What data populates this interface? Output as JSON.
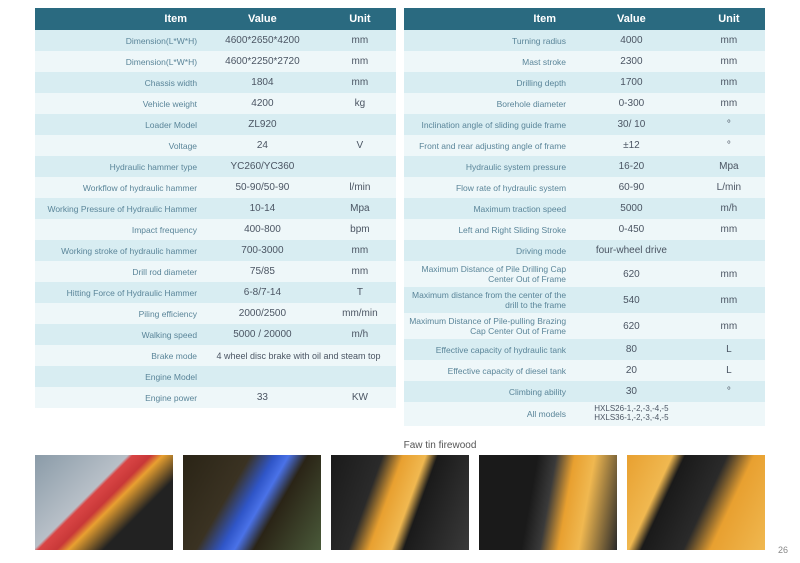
{
  "headers": {
    "item": "Item",
    "value": "Value",
    "unit": "Unit"
  },
  "left_table": [
    {
      "item": "Dimension(L*W*H)",
      "value": "4600*2650*4200",
      "unit": "mm"
    },
    {
      "item": "Dimension(L*W*H)",
      "value": "4600*2250*2720",
      "unit": "mm"
    },
    {
      "item": "Chassis width",
      "value": "1804",
      "unit": "mm"
    },
    {
      "item": "Vehicle weight",
      "value": "4200",
      "unit": "kg"
    },
    {
      "item": "Loader Model",
      "value": "ZL920",
      "unit": ""
    },
    {
      "item": "Voltage",
      "value": "24",
      "unit": "V"
    },
    {
      "item": "Hydraulic hammer type",
      "value": "YC260/YC360",
      "unit": ""
    },
    {
      "item": "Workflow of hydraulic hammer",
      "value": "50-90/50-90",
      "unit": "l/min"
    },
    {
      "item": "Working Pressure of Hydraulic Hammer",
      "value": "10-14",
      "unit": "Mpa"
    },
    {
      "item": "Impact frequency",
      "value": "400-800",
      "unit": "bpm"
    },
    {
      "item": "Working stroke of hydraulic hammer",
      "value": "700-3000",
      "unit": "mm"
    },
    {
      "item": "Drill rod diameter",
      "value": "75/85",
      "unit": "mm"
    },
    {
      "item": "Hitting Force of Hydraulic Hammer",
      "value": "6-8/7-14",
      "unit": "T"
    },
    {
      "item": "Piling efficiency",
      "value": "2000/2500",
      "unit": "mm/min"
    },
    {
      "item": "Walking speed",
      "value": "5000    /    20000",
      "unit": "m/h"
    },
    {
      "item": "Brake mode",
      "value": "4 wheel disc brake with oil and steam top",
      "unit": ""
    },
    {
      "item": "Engine Model",
      "value": "",
      "unit": ""
    },
    {
      "item": "Engine power",
      "value": "33",
      "unit": "KW"
    }
  ],
  "right_table": [
    {
      "item": "Turning radius",
      "value": "4000",
      "unit": "mm"
    },
    {
      "item": "Mast stroke",
      "value": "2300",
      "unit": "mm"
    },
    {
      "item": "Drilling depth",
      "value": "1700",
      "unit": "mm"
    },
    {
      "item": "Borehole diameter",
      "value": "0-300",
      "unit": "mm"
    },
    {
      "item": "Inclination angle of sliding guide frame",
      "value": "30/   10",
      "unit": "°"
    },
    {
      "item": "Front and rear adjusting angle of frame",
      "value": "±12",
      "unit": "°"
    },
    {
      "item": "Hydraulic system pressure",
      "value": "16-20",
      "unit": "Mpa"
    },
    {
      "item": "Flow rate of hydraulic system",
      "value": "60-90",
      "unit": "L/min"
    },
    {
      "item": "Maximum traction speed",
      "value": "5000",
      "unit": "m/h"
    },
    {
      "item": "Left and Right Sliding Stroke",
      "value": "0-450",
      "unit": "mm"
    },
    {
      "item": "Driving mode",
      "value": "four-wheel drive",
      "unit": ""
    },
    {
      "item": "Maximum Distance of Pile Drilling Cap Center Out of Frame",
      "value": "620",
      "unit": "mm"
    },
    {
      "item": "Maximum distance from the center of the drill to the frame",
      "value": "540",
      "unit": "mm"
    },
    {
      "item": "Maximum Distance of Pile-pulling Brazing Cap Center Out of Frame",
      "value": "620",
      "unit": "mm"
    },
    {
      "item": "Effective capacity of hydraulic tank",
      "value": "80",
      "unit": "L"
    },
    {
      "item": "Effective capacity of diesel tank",
      "value": "20",
      "unit": "L"
    },
    {
      "item": "Climbing ability",
      "value": "30",
      "unit": "°"
    },
    {
      "item": "All models",
      "value": "HXLS26-1,-2,-3,-4,-5\nHXLS36-1,-2,-3,-4,-5",
      "unit": ""
    }
  ],
  "gallery_title": "Faw tin firewood",
  "page_number": "26",
  "colors": {
    "header_bg": "#2a6a80",
    "header_text": "#ffffff",
    "row_even": "#d8edf2",
    "row_odd": "#eef7f9",
    "item_text": "#5a8599",
    "value_text": "#4b5563"
  }
}
